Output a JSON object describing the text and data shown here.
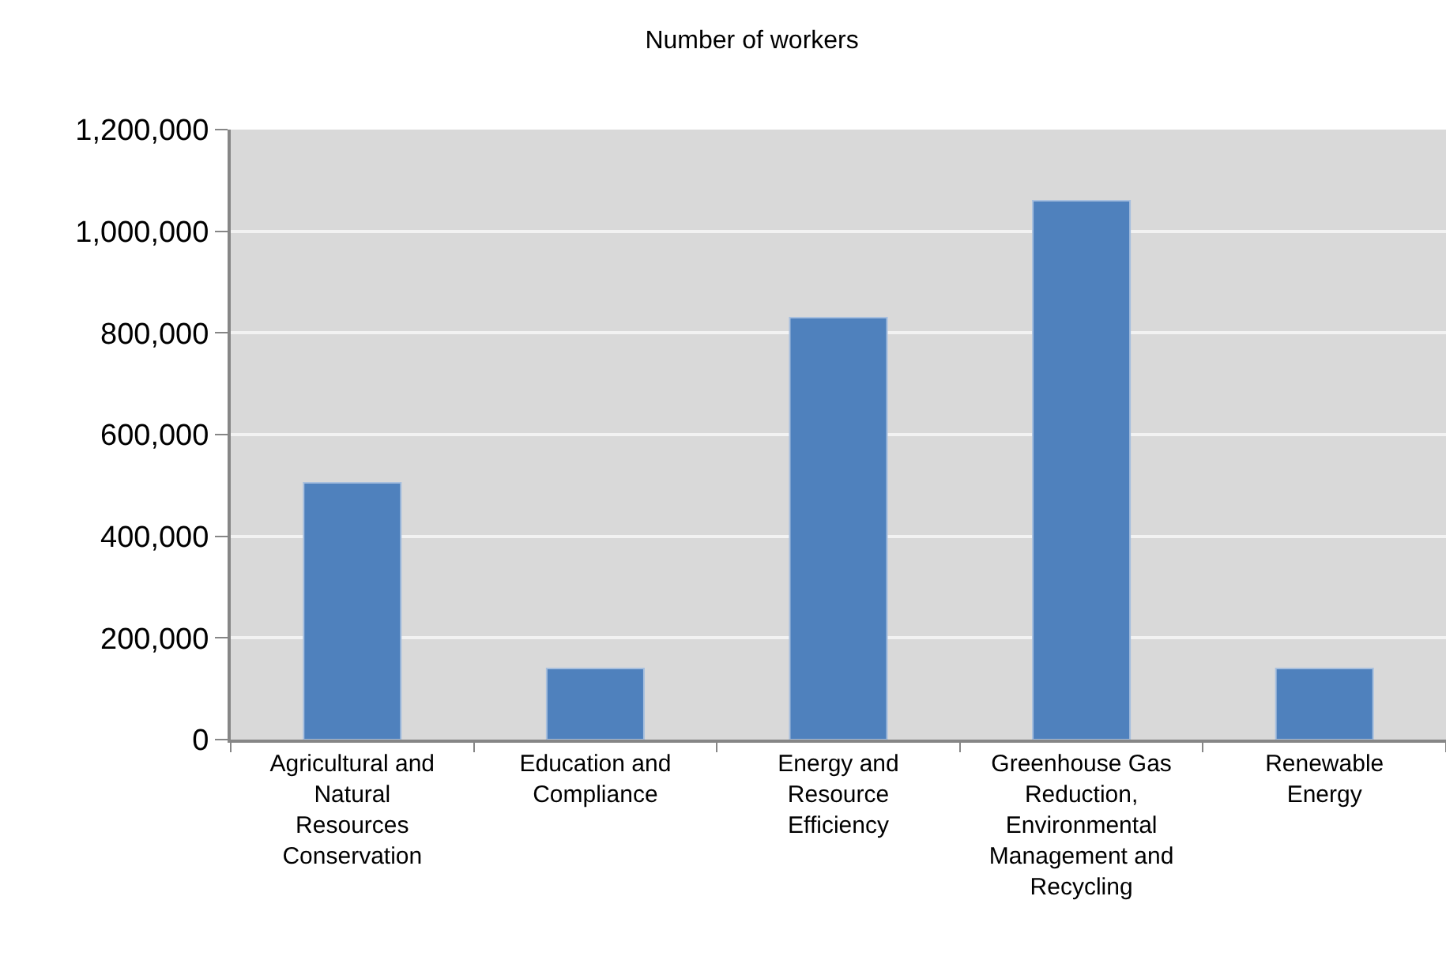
{
  "chart_data": {
    "type": "bar",
    "title": "Number of workers",
    "categories": [
      "Agricultural and Natural Resources Conservation",
      "Education and Compliance",
      "Energy and Resource Efficiency",
      "Greenhouse Gas Reduction, Environmental Management and Recycling",
      "Renewable Energy"
    ],
    "values": [
      505000,
      140000,
      830000,
      1060000,
      140000
    ],
    "color": "#4f81bd",
    "ylim": [
      0,
      1200000
    ],
    "yticks": [
      0,
      {
        "value": 200000,
        "label": "200,000"
      },
      {
        "value": 400000,
        "label": "400,000"
      },
      {
        "value": 600000,
        "label": "600,000"
      },
      {
        "value": 800000,
        "label": "800,000"
      },
      {
        "value": 1000000,
        "label": "1,000,000"
      },
      {
        "value": 1200000,
        "label": "1,200,000"
      }
    ],
    "grid": "y"
  }
}
